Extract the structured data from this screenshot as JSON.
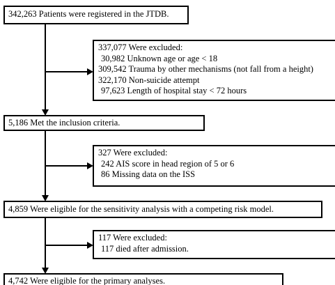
{
  "boxes": [
    {
      "text": "342,263 Patients were registered in the JTDB."
    },
    {
      "text": "5,186 Met the inclusion criteria."
    },
    {
      "text": "4,859 Were eligible for the sensitivity analysis with a competing risk model."
    },
    {
      "text": "4,742 Were eligible for the primary analyses."
    }
  ],
  "exclusions": [
    {
      "lines": [
        "337,077 Were excluded:",
        "30,982 Unknown age or age < 18",
        "309,542 Trauma by other mechanisms (not fall from a height)",
        "322,170 Non-suicide attempt",
        "97,623 Length of hospital stay < 72 hours"
      ]
    },
    {
      "lines": [
        "327 Were excluded:",
        "242 AIS score in head region of 5 or 6",
        "86 Missing data on the ISS"
      ]
    },
    {
      "lines": [
        "117 Were excluded:",
        "117 died after admission."
      ]
    }
  ]
}
